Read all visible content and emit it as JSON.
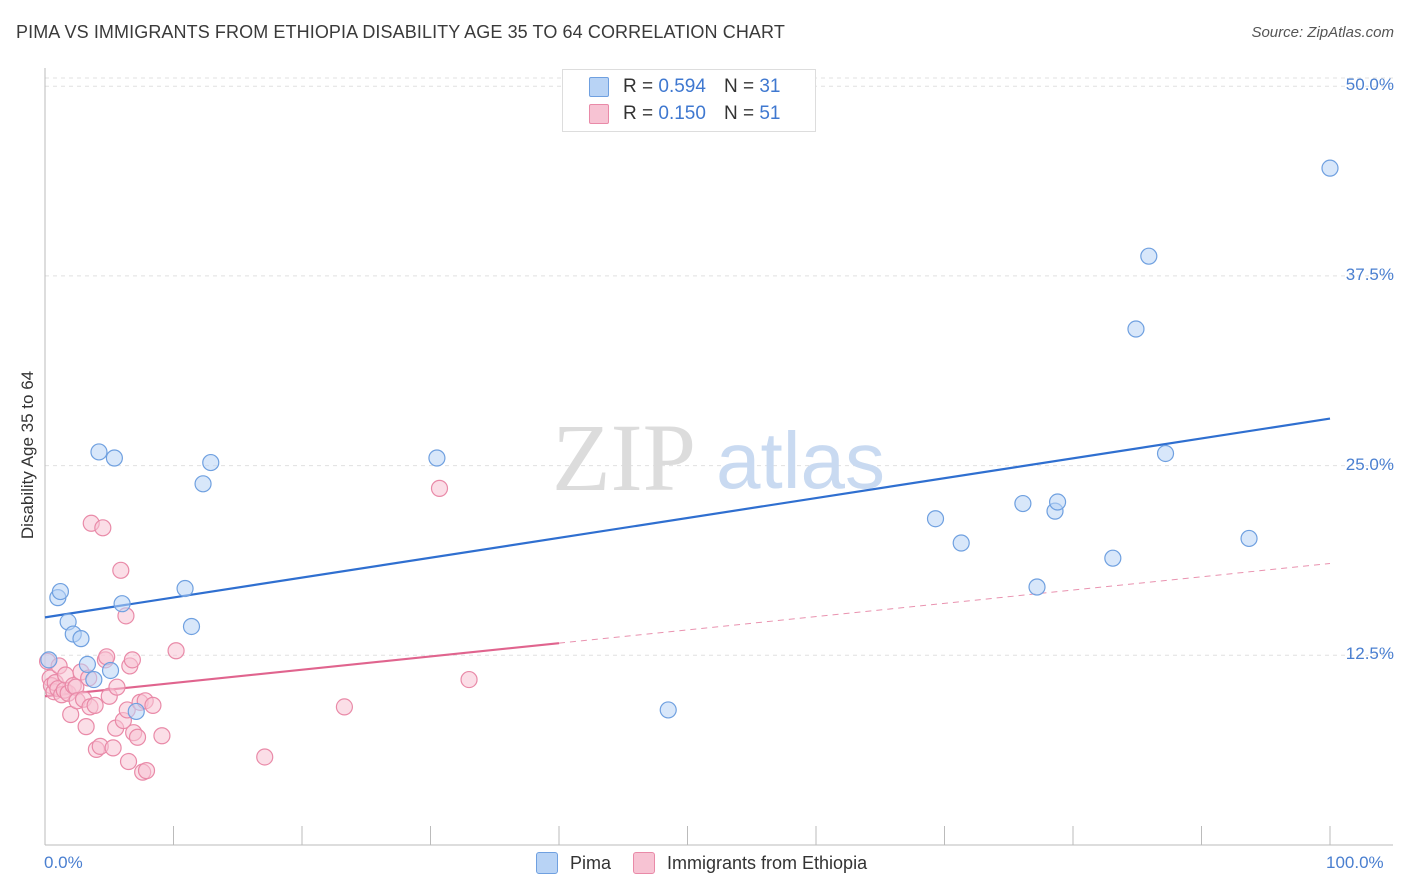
{
  "header": {
    "title": "PIMA VS IMMIGRANTS FROM ETHIOPIA DISABILITY AGE 35 TO 64 CORRELATION CHART",
    "source": "Source: ZipAtlas.com"
  },
  "watermark": {
    "zip": "ZIP",
    "atlas": "atlas"
  },
  "legend_top": {
    "rows": [
      {
        "r_label": "R =",
        "r_value": "0.594",
        "n_label": "N =",
        "n_value": "31"
      },
      {
        "r_label": "R =",
        "r_value": "0.150",
        "n_label": "N =",
        "n_value": "51"
      }
    ]
  },
  "legend_bottom": {
    "items": [
      "Pima",
      "Immigrants from Ethiopia"
    ]
  },
  "colors": {
    "pima_fill": "#b8d3f5",
    "pima_stroke": "#6fa0e0",
    "pima_line": "#2f6fd0",
    "eth_fill": "#f7c3d3",
    "eth_stroke": "#e98aa8",
    "eth_line": "#e0648e",
    "tick_text": "#4a7fd0",
    "grid": "#e0e0e0"
  },
  "chart_data": {
    "type": "scatter",
    "title": "PIMA VS IMMIGRANTS FROM ETHIOPIA DISABILITY AGE 35 TO 64 CORRELATION CHART",
    "ylabel": "Disability Age 35 to 64",
    "xlabel": "",
    "xlim": [
      0,
      100
    ],
    "ylim": [
      0,
      51.2
    ],
    "x_tick_labels": [
      "0.0%",
      "100.0%"
    ],
    "y_ticks": [
      12.5,
      25.0,
      37.5,
      50.0
    ],
    "y_tick_labels": [
      "12.5%",
      "25.0%",
      "37.5%",
      "50.0%"
    ],
    "grid": true,
    "series": [
      {
        "name": "Pima",
        "r": 0.594,
        "n": 31,
        "trend": {
          "x0": 0,
          "y0": 15.0,
          "x1": 100,
          "y1": 28.1,
          "extended_x1": 100
        },
        "points": [
          [
            0.3,
            12.2
          ],
          [
            1.0,
            16.3
          ],
          [
            1.2,
            16.7
          ],
          [
            1.8,
            14.7
          ],
          [
            2.2,
            13.9
          ],
          [
            2.8,
            13.6
          ],
          [
            3.3,
            11.9
          ],
          [
            3.8,
            10.9
          ],
          [
            4.2,
            25.9
          ],
          [
            5.1,
            11.5
          ],
          [
            5.4,
            25.5
          ],
          [
            6.0,
            15.9
          ],
          [
            7.1,
            8.8
          ],
          [
            10.9,
            16.9
          ],
          [
            11.4,
            14.4
          ],
          [
            12.3,
            23.8
          ],
          [
            12.9,
            25.2
          ],
          [
            30.5,
            25.5
          ],
          [
            48.5,
            8.9
          ],
          [
            69.3,
            21.5
          ],
          [
            71.3,
            19.9
          ],
          [
            76.1,
            22.5
          ],
          [
            77.2,
            17.0
          ],
          [
            78.6,
            22.0
          ],
          [
            78.8,
            22.6
          ],
          [
            83.1,
            18.9
          ],
          [
            84.9,
            34.0
          ],
          [
            85.9,
            38.8
          ],
          [
            93.7,
            20.2
          ],
          [
            87.2,
            25.8
          ],
          [
            100,
            44.6
          ]
        ]
      },
      {
        "name": "Immigrants from Ethiopia",
        "r": 0.15,
        "n": 51,
        "trend": {
          "x0": 0,
          "y0": 9.8,
          "x1": 40,
          "y1": 13.3,
          "extended_x1": 100
        },
        "points": [
          [
            0.2,
            12.1
          ],
          [
            0.4,
            11.0
          ],
          [
            0.5,
            10.5
          ],
          [
            0.7,
            10.1
          ],
          [
            0.8,
            10.7
          ],
          [
            1.0,
            10.3
          ],
          [
            1.1,
            11.8
          ],
          [
            1.3,
            9.9
          ],
          [
            1.5,
            10.2
          ],
          [
            1.6,
            11.2
          ],
          [
            1.8,
            10.0
          ],
          [
            2.0,
            8.6
          ],
          [
            2.2,
            10.5
          ],
          [
            2.4,
            10.4
          ],
          [
            2.5,
            9.5
          ],
          [
            2.8,
            11.4
          ],
          [
            3.0,
            9.6
          ],
          [
            3.2,
            7.8
          ],
          [
            3.4,
            11.0
          ],
          [
            3.5,
            9.1
          ],
          [
            3.6,
            21.2
          ],
          [
            3.9,
            9.2
          ],
          [
            4.0,
            6.3
          ],
          [
            4.3,
            6.5
          ],
          [
            4.5,
            20.9
          ],
          [
            4.7,
            12.2
          ],
          [
            4.8,
            12.4
          ],
          [
            5.0,
            9.8
          ],
          [
            5.3,
            6.4
          ],
          [
            5.5,
            7.7
          ],
          [
            5.6,
            10.4
          ],
          [
            5.9,
            18.1
          ],
          [
            6.1,
            8.2
          ],
          [
            6.3,
            15.1
          ],
          [
            6.4,
            8.9
          ],
          [
            6.5,
            5.5
          ],
          [
            6.6,
            11.8
          ],
          [
            6.8,
            12.2
          ],
          [
            6.9,
            7.4
          ],
          [
            7.2,
            7.1
          ],
          [
            7.4,
            9.4
          ],
          [
            7.6,
            4.8
          ],
          [
            7.8,
            9.5
          ],
          [
            7.9,
            4.9
          ],
          [
            8.4,
            9.2
          ],
          [
            9.1,
            7.2
          ],
          [
            10.2,
            12.8
          ],
          [
            17.1,
            5.8
          ],
          [
            23.3,
            9.1
          ],
          [
            30.7,
            23.5
          ],
          [
            33.0,
            10.9
          ]
        ]
      }
    ]
  }
}
